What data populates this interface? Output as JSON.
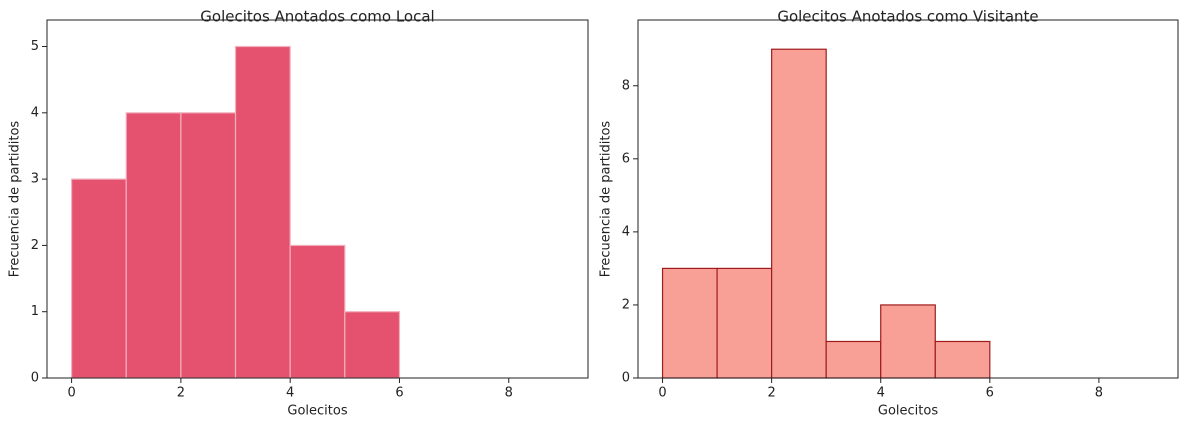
{
  "chart_data": [
    {
      "type": "histogram",
      "title": "Golecitos Anotados como Local",
      "xlabel": "Golecitos",
      "ylabel": "Frecuencia de partiditos",
      "bins": [
        0,
        1,
        2,
        3,
        4,
        5,
        6,
        7,
        8,
        9
      ],
      "values": [
        3,
        4,
        4,
        5,
        2,
        1,
        0,
        0,
        0
      ],
      "color": "#e5526f",
      "edgecolor": "#f2b0bd",
      "xlim": [
        -0.45,
        9.45
      ],
      "xticks": [
        0,
        2,
        4,
        6,
        8
      ],
      "ylim": [
        0,
        5.4
      ],
      "yticks": [
        0,
        1,
        2,
        3,
        4,
        5
      ]
    },
    {
      "type": "histogram",
      "title": "Golecitos Anotados como Visitante",
      "xlabel": "Golecitos",
      "ylabel": "Frecuencia de partiditos",
      "bins": [
        0,
        1,
        2,
        3,
        4,
        5,
        6,
        7,
        8,
        9
      ],
      "values": [
        3,
        3,
        9,
        1,
        2,
        1,
        0,
        0,
        0
      ],
      "color": "#f8a096",
      "edgecolor": "#a01c1c",
      "xlim": [
        -0.45,
        9.45
      ],
      "xticks": [
        0,
        2,
        4,
        6,
        8
      ],
      "ylim": [
        0,
        9.8
      ],
      "yticks": [
        0,
        2,
        4,
        6,
        8
      ]
    }
  ]
}
